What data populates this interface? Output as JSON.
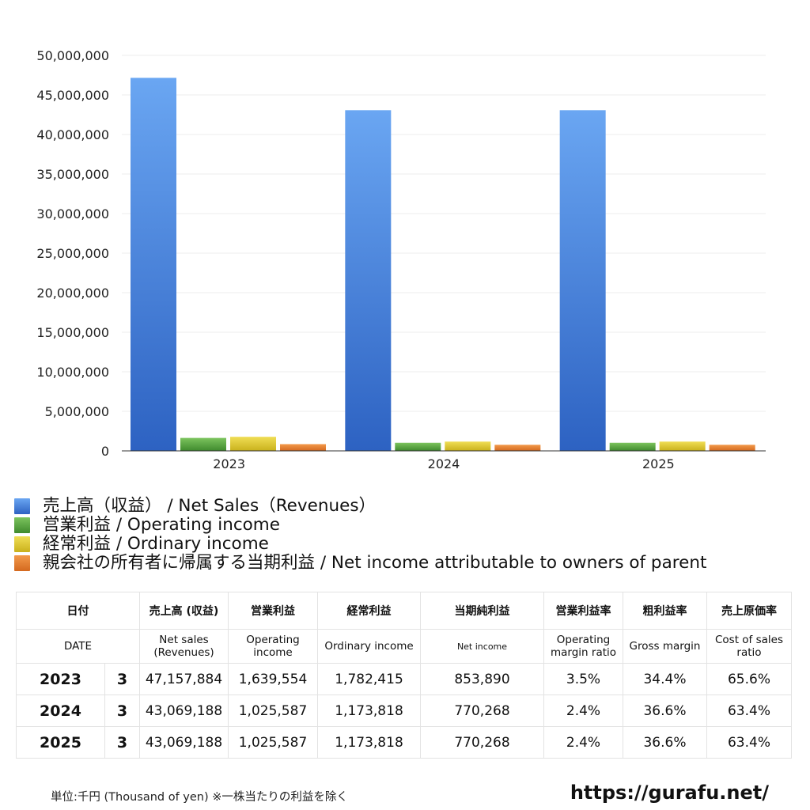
{
  "chart_data": {
    "type": "bar",
    "categories": [
      "2023",
      "2024",
      "2025"
    ],
    "series": [
      {
        "name": "売上高（収益） / Net Sales（Revenues）",
        "color": "#3f7fdc",
        "values": [
          47157884,
          43069188,
          43069188
        ]
      },
      {
        "name": "営業利益 / Operating income",
        "color": "#4f9a3a",
        "values": [
          1639554,
          1025587,
          1025587
        ]
      },
      {
        "name": "経常利益 / Ordinary income",
        "color": "#d9c227",
        "values": [
          1782415,
          1173818,
          1173818
        ]
      },
      {
        "name": "親会社の所有者に帰属する当期利益 / Net income attributable to owners of parent",
        "color": "#e0782d",
        "values": [
          853890,
          770268,
          770268
        ]
      }
    ],
    "ylim": [
      0,
      50000000
    ],
    "yticks": [
      "0",
      "5,000,000",
      "10,000,000",
      "15,000,000",
      "20,000,000",
      "25,000,000",
      "30,000,000",
      "35,000,000",
      "40,000,000",
      "45,000,000",
      "50,000,000"
    ],
    "ytick_values": [
      0,
      5000000,
      10000000,
      15000000,
      20000000,
      25000000,
      30000000,
      35000000,
      40000000,
      45000000,
      50000000
    ],
    "grid": true,
    "title": "",
    "xlabel": "",
    "ylabel": ""
  },
  "legend": {
    "items": [
      {
        "label": "売上高（収益） / Net Sales（Revenues）",
        "color": "#3f7fdc"
      },
      {
        "label": "営業利益 / Operating income",
        "color": "#4f9a3a"
      },
      {
        "label": "経常利益 / Ordinary income",
        "color": "#d9c227"
      },
      {
        "label": "親会社の所有者に帰属する当期利益 / Net income attributable to owners of parent",
        "color": "#e0782d"
      }
    ]
  },
  "table": {
    "header_jp": {
      "date": "日付",
      "net_sales": "売上高 (収益)",
      "operating": "営業利益",
      "ordinary": "経常利益",
      "net_income": "当期純利益",
      "op_margin": "営業利益率",
      "gross_margin": "粗利益率",
      "cost_ratio": "売上原価率"
    },
    "header_en": {
      "date": "DATE",
      "net_sales": "Net sales (Revenues)",
      "operating": "Operating income",
      "ordinary": "Ordinary income",
      "net_income": "Net income",
      "op_margin": "Operating margin ratio",
      "gross_margin": "Gross margin",
      "cost_ratio": "Cost of sales ratio"
    },
    "rows": [
      {
        "year": "2023",
        "month": "3",
        "net_sales": "47,157,884",
        "operating": "1,639,554",
        "ordinary": "1,782,415",
        "net_income": "853,890",
        "op_margin": "3.5%",
        "gross_margin": "34.4%",
        "cost_ratio": "65.6%"
      },
      {
        "year": "2024",
        "month": "3",
        "net_sales": "43,069,188",
        "operating": "1,025,587",
        "ordinary": "1,173,818",
        "net_income": "770,268",
        "op_margin": "2.4%",
        "gross_margin": "36.6%",
        "cost_ratio": "63.4%"
      },
      {
        "year": "2025",
        "month": "3",
        "net_sales": "43,069,188",
        "operating": "1,025,587",
        "ordinary": "1,173,818",
        "net_income": "770,268",
        "op_margin": "2.4%",
        "gross_margin": "36.6%",
        "cost_ratio": "63.4%"
      }
    ]
  },
  "footer": {
    "note": "単位:千円 (Thousand of yen) ※一株当たりの利益を除く",
    "site": "https://gurafu.net/"
  }
}
